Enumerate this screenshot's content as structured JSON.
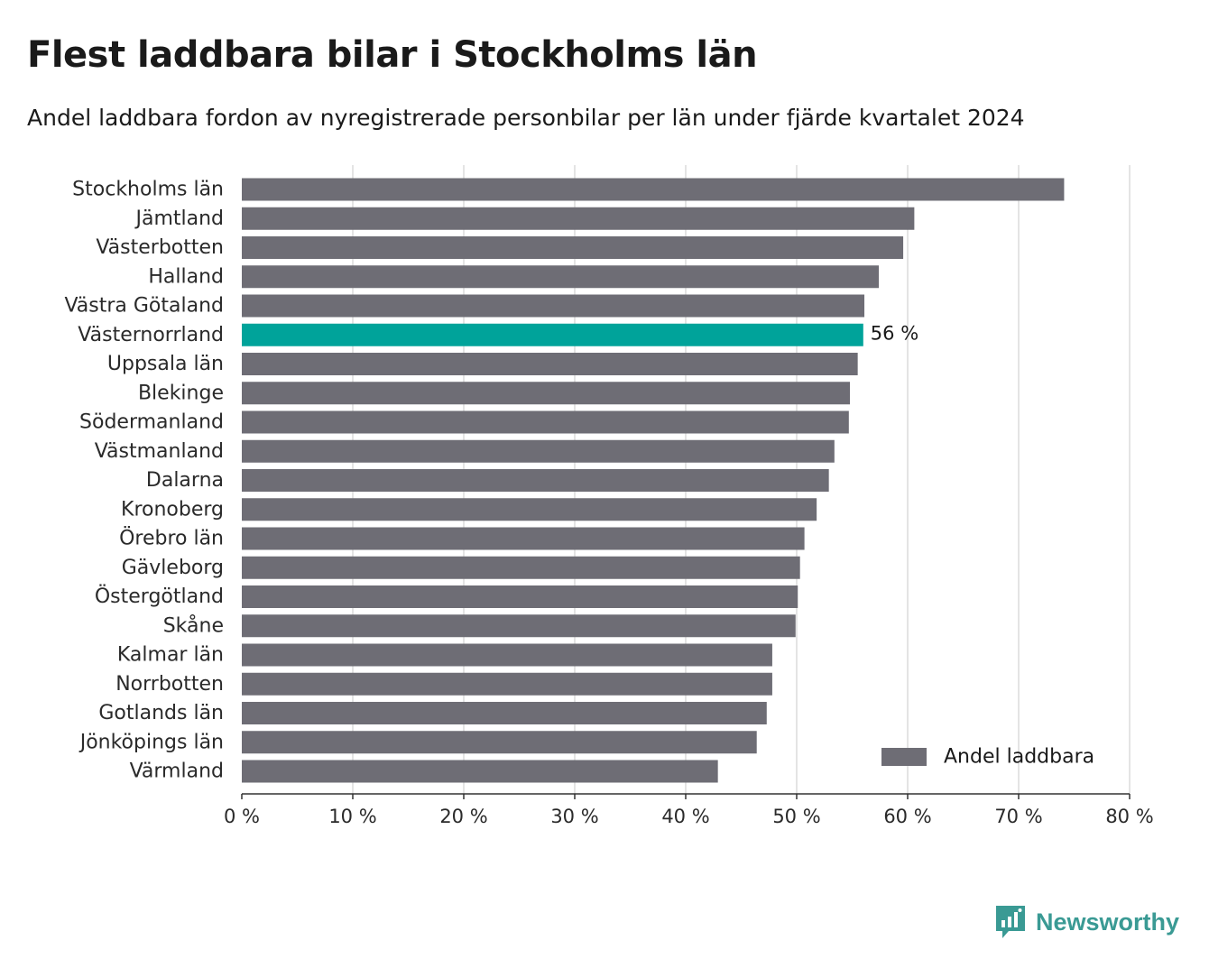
{
  "header": {
    "title": "Flest laddbara bilar i Stockholms län",
    "subtitle": "Andel laddbara fordon av nyregistrerade personbilar per län under fjärde kvartalet 2024"
  },
  "chart_data": {
    "type": "bar",
    "orientation": "horizontal",
    "title": "Flest laddbara bilar i Stockholms län",
    "subtitle": "Andel laddbara fordon av nyregistrerade personbilar per län under fjärde kvartalet 2024",
    "xlabel": "",
    "ylabel": "",
    "xlim": [
      0,
      80
    ],
    "x_ticks": [
      0,
      10,
      20,
      30,
      40,
      50,
      60,
      70,
      80
    ],
    "x_tick_labels": [
      "0 %",
      "10 %",
      "20 %",
      "30 %",
      "40 %",
      "50 %",
      "60 %",
      "70 %",
      "80 %"
    ],
    "grid": "vertical",
    "categories": [
      "Stockholms län",
      "Jämtland",
      "Västerbotten",
      "Halland",
      "Västra Götaland",
      "Västernorrland",
      "Uppsala län",
      "Blekinge",
      "Södermanland",
      "Västmanland",
      "Dalarna",
      "Kronoberg",
      "Örebro län",
      "Gävleborg",
      "Östergötland",
      "Skåne",
      "Kalmar län",
      "Norrbotten",
      "Gotlands län",
      "Jönköpings län",
      "Värmland"
    ],
    "series": [
      {
        "name": "Andel laddbara",
        "values": [
          74.1,
          60.6,
          59.6,
          57.4,
          56.1,
          56.0,
          55.5,
          54.8,
          54.7,
          53.4,
          52.9,
          51.8,
          50.7,
          50.3,
          50.1,
          49.9,
          47.8,
          47.8,
          47.3,
          46.4,
          42.9
        ]
      }
    ],
    "highlight": {
      "category": "Västernorrland",
      "label": "56 %"
    },
    "legend": {
      "label": "Andel laddbara",
      "position": "bottom-right"
    },
    "colors": {
      "bar": "#6e6d75",
      "highlight": "#00a39a",
      "grid": "#dcdcdc",
      "axis": "#333333"
    }
  },
  "brand": {
    "name": "Newsworthy",
    "icon": "newsworthy-logo-icon",
    "color": "#3a9a94"
  }
}
